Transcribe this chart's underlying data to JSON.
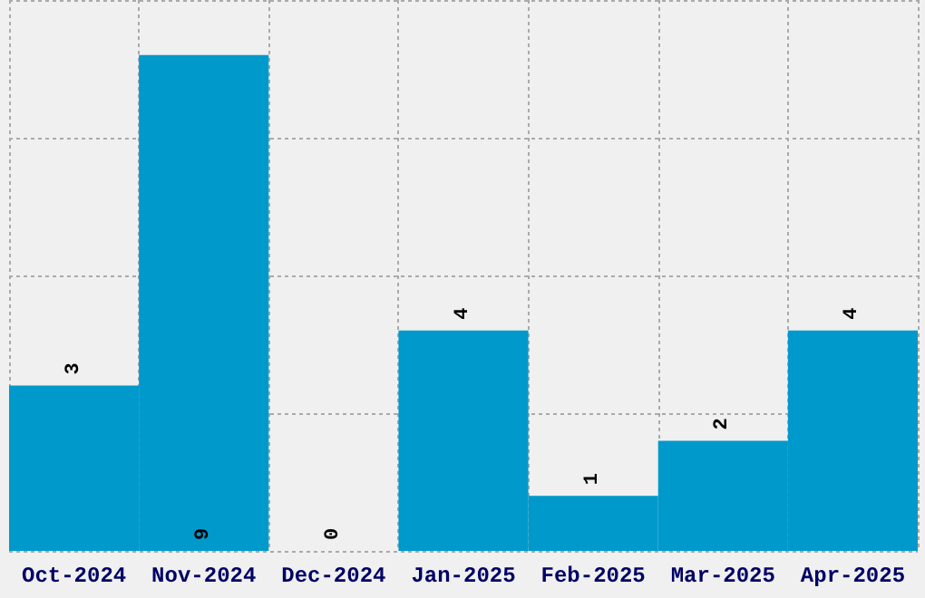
{
  "chart_data": {
    "type": "bar",
    "categories": [
      "Oct-2024",
      "Nov-2024",
      "Dec-2024",
      "Jan-2025",
      "Feb-2025",
      "Mar-2025",
      "Apr-2025"
    ],
    "values": [
      3,
      9,
      0,
      4,
      1,
      2,
      4
    ],
    "color": "#0099cc",
    "ylim": [
      0,
      10
    ],
    "yticks": [
      {
        "value": 0,
        "label": null
      },
      {
        "value": 2.5,
        "label": null
      },
      {
        "value": 5,
        "label": null
      },
      {
        "value": 7.5,
        "label": null
      },
      {
        "value": 10,
        "label": null
      }
    ],
    "grid": true,
    "data_labels": true,
    "tick_labels": "x"
  }
}
